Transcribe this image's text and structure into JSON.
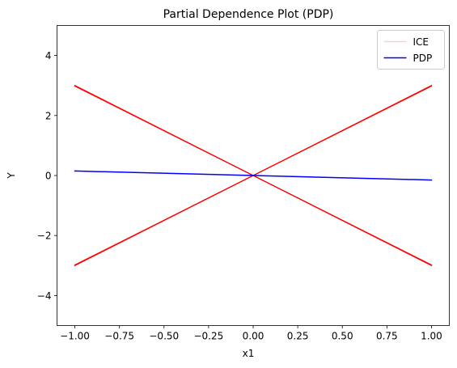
{
  "chart_data": {
    "type": "line",
    "title": "Partial Dependence Plot (PDP)",
    "xlabel": "x1",
    "ylabel": "Y",
    "xlim": [
      -1.1,
      1.1
    ],
    "ylim": [
      -5,
      5
    ],
    "xticks": [
      -1.0,
      -0.75,
      -0.5,
      -0.25,
      0.0,
      0.25,
      0.5,
      0.75,
      1.0
    ],
    "xtick_labels": [
      "−1.00",
      "−0.75",
      "−0.50",
      "−0.25",
      "0.00",
      "0.25",
      "0.50",
      "0.75",
      "1.00"
    ],
    "yticks": [
      -4,
      -2,
      0,
      2,
      4
    ],
    "ytick_labels": [
      "−4",
      "−2",
      "0",
      "2",
      "4"
    ],
    "grid": false,
    "legend_position": "top-right",
    "series": [
      {
        "name": "ICE",
        "color": "#ff0000",
        "legend_color": "#ffcccc",
        "lines": [
          {
            "x": [
              -1.0,
              1.0
            ],
            "y": [
              3.0,
              -3.0
            ]
          },
          {
            "x": [
              -1.0,
              1.0
            ],
            "y": [
              2.98,
              -2.98
            ]
          },
          {
            "x": [
              -1.0,
              1.0
            ],
            "y": [
              -3.0,
              3.0
            ]
          },
          {
            "x": [
              -1.0,
              1.0
            ],
            "y": [
              -2.98,
              2.98
            ]
          }
        ]
      },
      {
        "name": "PDP",
        "color": "#0000ff",
        "lines": [
          {
            "x": [
              -1.0,
              1.0
            ],
            "y": [
              0.15,
              -0.15
            ]
          }
        ]
      }
    ]
  }
}
